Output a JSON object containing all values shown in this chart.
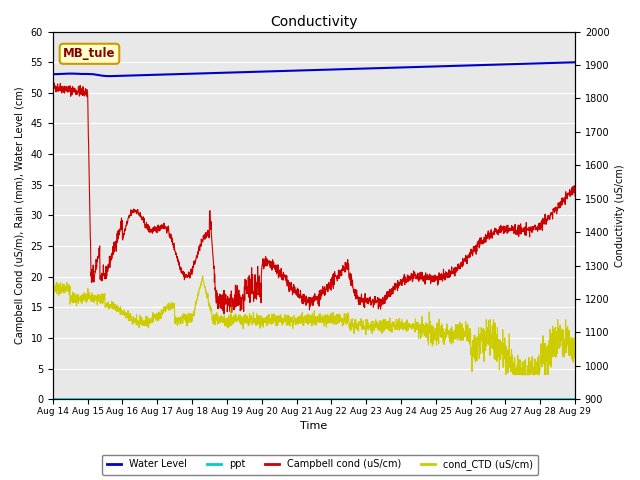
{
  "title": "Conductivity",
  "xlabel": "Time",
  "ylabel_left": "Campbell Cond (uS/m), Rain (mm), Water Level (cm)",
  "ylabel_right": "Conductivity (uS/cm)",
  "ylim_left": [
    0,
    60
  ],
  "ylim_right": [
    900,
    2000
  ],
  "annotation_text": "MB_tule",
  "background_color": "#e8e8e8",
  "legend_labels": [
    "Water Level",
    "ppt",
    "Campbell cond (uS/cm)",
    "cond_CTD (uS/cm)"
  ],
  "legend_colors": [
    "#0000cc",
    "#00cccc",
    "#cc0000",
    "#cccc00"
  ],
  "x_ticks": [
    "Aug 14",
    "Aug 15",
    "Aug 16",
    "Aug 17",
    "Aug 18",
    "Aug 19",
    "Aug 20",
    "Aug 21",
    "Aug 22",
    "Aug 23",
    "Aug 24",
    "Aug 25",
    "Aug 26",
    "Aug 27",
    "Aug 28",
    "Aug 29"
  ],
  "yticks_left": [
    0,
    5,
    10,
    15,
    20,
    25,
    30,
    35,
    40,
    45,
    50,
    55,
    60
  ],
  "yticks_right": [
    900,
    1000,
    1100,
    1200,
    1300,
    1400,
    1500,
    1600,
    1700,
    1800,
    1900,
    2000
  ]
}
